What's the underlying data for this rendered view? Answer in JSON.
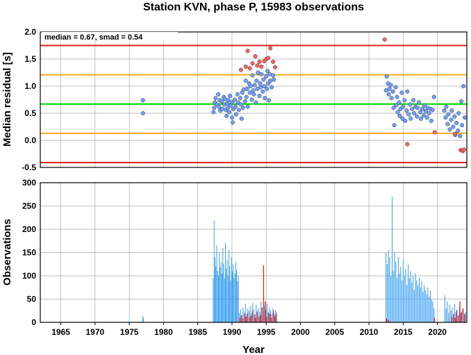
{
  "title": "Station KVN, phase P, 15983 observations",
  "colors": {
    "grid": "#a9a9a9",
    "red": "#e0201b",
    "orange": "#f5a623",
    "green": "#22dd22",
    "blue_point": "#6ea0ff",
    "red_point": "#ff6060",
    "blue_bar": "#2a97f2",
    "red_bar": "#d62020"
  },
  "chart_data": [
    {
      "type": "scatter",
      "ylabel": "Median residual [s]",
      "annotation": "median = 0.67, smad = 0.54",
      "xlim": [
        1962,
        2024.3
      ],
      "ylim": [
        -0.5,
        2.0
      ],
      "yticks": [
        "2.0",
        "1.5",
        "1.0",
        "0.5",
        "0.0",
        "-0.5"
      ],
      "ytick_values": [
        2.0,
        1.5,
        1.0,
        0.5,
        0.0,
        -0.5
      ],
      "reference_lines": [
        {
          "y": 1.75,
          "color": "red"
        },
        {
          "y": 1.21,
          "color": "orange"
        },
        {
          "y": 0.67,
          "color": "green"
        },
        {
          "y": 0.13,
          "color": "orange"
        },
        {
          "y": -0.41,
          "color": "red"
        }
      ],
      "series": [
        {
          "color": "blue_point",
          "points": [
            [
              1977.0,
              0.74
            ],
            [
              1977.0,
              0.5
            ],
            [
              1987.3,
              0.52
            ],
            [
              1987.4,
              0.6
            ],
            [
              1987.5,
              0.7
            ],
            [
              1987.6,
              0.78
            ],
            [
              1987.8,
              0.66
            ],
            [
              1988.0,
              0.85
            ],
            [
              1988.1,
              0.62
            ],
            [
              1988.2,
              0.74
            ],
            [
              1988.3,
              0.55
            ],
            [
              1988.5,
              0.72
            ],
            [
              1988.6,
              0.58
            ],
            [
              1988.8,
              0.8
            ],
            [
              1988.9,
              0.66
            ],
            [
              1989.0,
              0.76
            ],
            [
              1989.1,
              0.56
            ],
            [
              1989.2,
              0.45
            ],
            [
              1989.3,
              0.68
            ],
            [
              1989.4,
              0.6
            ],
            [
              1989.5,
              0.74
            ],
            [
              1989.6,
              0.52
            ],
            [
              1989.7,
              0.82
            ],
            [
              1989.8,
              0.64
            ],
            [
              1990.0,
              0.7
            ],
            [
              1990.0,
              0.42
            ],
            [
              1990.1,
              0.33
            ],
            [
              1990.2,
              0.58
            ],
            [
              1990.4,
              0.75
            ],
            [
              1990.5,
              0.62
            ],
            [
              1990.6,
              0.48
            ],
            [
              1990.8,
              0.85
            ],
            [
              1990.9,
              0.7
            ],
            [
              1991.0,
              0.56
            ],
            [
              1991.2,
              0.78
            ],
            [
              1991.3,
              0.66
            ],
            [
              1991.4,
              0.4
            ],
            [
              1991.5,
              0.88
            ],
            [
              1991.6,
              0.6
            ],
            [
              1991.7,
              0.94
            ],
            [
              1991.9,
              0.72
            ],
            [
              1992.0,
              1.1
            ],
            [
              1992.1,
              0.8
            ],
            [
              1992.2,
              0.95
            ],
            [
              1992.3,
              0.62
            ],
            [
              1992.5,
              1.05
            ],
            [
              1992.6,
              0.88
            ],
            [
              1992.7,
              1.0
            ],
            [
              1992.9,
              0.75
            ],
            [
              1993.0,
              1.2
            ],
            [
              1993.1,
              0.92
            ],
            [
              1993.2,
              0.85
            ],
            [
              1993.3,
              1.02
            ],
            [
              1993.5,
              0.7
            ],
            [
              1993.6,
              1.1
            ],
            [
              1993.7,
              0.95
            ],
            [
              1993.8,
              1.25
            ],
            [
              1994.0,
              0.82
            ],
            [
              1994.1,
              1.05
            ],
            [
              1994.2,
              0.98
            ],
            [
              1994.3,
              1.22
            ],
            [
              1994.5,
              0.9
            ],
            [
              1994.6,
              1.12
            ],
            [
              1994.7,
              1.0
            ],
            [
              1994.8,
              0.78
            ],
            [
              1995.0,
              1.18
            ],
            [
              1995.1,
              0.95
            ],
            [
              1995.2,
              1.28
            ],
            [
              1995.3,
              1.05
            ],
            [
              1995.4,
              0.74
            ],
            [
              1995.5,
              1.22
            ],
            [
              1995.6,
              1.1
            ],
            [
              1995.8,
              0.98
            ],
            [
              1996.0,
              1.2
            ],
            [
              1996.1,
              1.12
            ],
            [
              2012.5,
              0.92
            ],
            [
              2012.6,
              1.18
            ],
            [
              2012.8,
              1.05
            ],
            [
              2012.9,
              0.85
            ],
            [
              2013.0,
              0.95
            ],
            [
              2013.2,
              1.02
            ],
            [
              2013.3,
              0.78
            ],
            [
              2013.5,
              0.9
            ],
            [
              2013.6,
              0.6
            ],
            [
              2013.7,
              0.28
            ],
            [
              2013.9,
              0.98
            ],
            [
              2014.0,
              0.65
            ],
            [
              2014.1,
              0.8
            ],
            [
              2014.2,
              0.52
            ],
            [
              2014.4,
              0.7
            ],
            [
              2014.5,
              0.45
            ],
            [
              2014.6,
              0.58
            ],
            [
              2014.8,
              0.88
            ],
            [
              2014.9,
              0.4
            ],
            [
              2015.0,
              0.62
            ],
            [
              2015.2,
              0.74
            ],
            [
              2015.3,
              0.36
            ],
            [
              2015.5,
              0.55
            ],
            [
              2015.6,
              0.9
            ],
            [
              2015.8,
              0.48
            ],
            [
              2016.0,
              0.66
            ],
            [
              2016.1,
              0.4
            ],
            [
              2016.3,
              0.58
            ],
            [
              2016.5,
              0.74
            ],
            [
              2016.6,
              0.5
            ],
            [
              2016.8,
              0.62
            ],
            [
              2017.0,
              0.44
            ],
            [
              2017.1,
              0.6
            ],
            [
              2017.3,
              0.7
            ],
            [
              2017.5,
              0.52
            ],
            [
              2017.6,
              0.4
            ],
            [
              2017.8,
              0.58
            ],
            [
              2018.0,
              0.46
            ],
            [
              2018.1,
              0.64
            ],
            [
              2018.3,
              0.54
            ],
            [
              2018.5,
              0.42
            ],
            [
              2018.6,
              0.6
            ],
            [
              2018.8,
              0.5
            ],
            [
              2019.0,
              0.58
            ],
            [
              2019.1,
              0.36
            ],
            [
              2019.3,
              0.56
            ],
            [
              2019.5,
              0.8
            ],
            [
              2021.0,
              0.55
            ],
            [
              2021.2,
              0.42
            ],
            [
              2021.3,
              0.62
            ],
            [
              2021.5,
              0.3
            ],
            [
              2021.6,
              0.48
            ],
            [
              2021.8,
              0.2
            ],
            [
              2022.0,
              0.38
            ],
            [
              2022.1,
              0.55
            ],
            [
              2022.3,
              0.25
            ],
            [
              2022.5,
              0.44
            ],
            [
              2022.6,
              0.1
            ],
            [
              2022.8,
              0.32
            ],
            [
              2023.0,
              0.18
            ],
            [
              2023.1,
              0.5
            ],
            [
              2023.3,
              0.08
            ],
            [
              2023.5,
              0.72
            ],
            [
              2023.6,
              0.28
            ],
            [
              2023.8,
              1.0
            ],
            [
              2024.0,
              0.42
            ]
          ]
        },
        {
          "color": "red_point",
          "points": [
            [
              1991.3,
              1.3
            ],
            [
              1992.0,
              1.36
            ],
            [
              1992.3,
              1.65
            ],
            [
              1992.6,
              1.33
            ],
            [
              1993.0,
              1.42
            ],
            [
              1993.4,
              1.55
            ],
            [
              1993.7,
              1.38
            ],
            [
              1994.0,
              1.45
            ],
            [
              1994.3,
              1.36
            ],
            [
              1994.7,
              1.46
            ],
            [
              1995.0,
              1.5
            ],
            [
              1995.3,
              1.52
            ],
            [
              1995.6,
              1.7
            ],
            [
              1996.0,
              1.45
            ],
            [
              1996.3,
              1.35
            ],
            [
              2012.3,
              1.86
            ],
            [
              2015.6,
              -0.07
            ],
            [
              2019.6,
              0.15
            ],
            [
              2022.6,
              0.12
            ],
            [
              2023.4,
              -0.18
            ],
            [
              2023.7,
              -0.2
            ],
            [
              2023.9,
              -0.17
            ]
          ]
        }
      ]
    },
    {
      "type": "bar",
      "ylabel": "Observations",
      "xlabel": "Year",
      "xlim": [
        1962,
        2024.3
      ],
      "ylim": [
        0,
        300
      ],
      "yticks": [
        "300",
        "250",
        "200",
        "150",
        "100",
        "50",
        "0"
      ],
      "ytick_values": [
        300,
        250,
        200,
        150,
        100,
        50,
        0
      ],
      "xticks": [
        "1965",
        "1970",
        "1975",
        "1980",
        "1985",
        "1990",
        "1995",
        "2000",
        "2005",
        "2010",
        "2015",
        "2020"
      ],
      "xtick_values": [
        1965,
        1970,
        1975,
        1980,
        1985,
        1990,
        1995,
        2000,
        2005,
        2010,
        2015,
        2020
      ],
      "series": [
        {
          "color": "blue_bar",
          "segments": [
            {
              "start": 1976.9,
              "end": 1977.1,
              "values": [
                14,
                10
              ]
            },
            {
              "start": 1987.2,
              "end": 1991.0,
              "values": [
                95,
                218,
                140,
                120,
                165,
                110,
                100,
                150,
                118,
                130,
                105,
                160,
                125,
                95,
                170,
                115,
                135,
                100,
                155,
                120,
                90,
                140,
                110,
                125,
                95,
                105,
                130,
                112,
                88,
                100
              ]
            },
            {
              "start": 1991.0,
              "end": 1996.6,
              "values": [
                20,
                28,
                15,
                32,
                22,
                40,
                18,
                30,
                25,
                35,
                20,
                42,
                28,
                18,
                38,
                25,
                30,
                22,
                45,
                30,
                20,
                35,
                28,
                40,
                22,
                32,
                25,
                18,
                30,
                20,
                26,
                22
              ]
            },
            {
              "start": 2012.4,
              "end": 2019.6,
              "values": [
                150,
                125,
                155,
                140,
                100,
                270,
                110,
                150,
                130,
                95,
                140,
                105,
                120,
                90,
                135,
                100,
                115,
                80,
                125,
                95,
                110,
                85,
                100,
                70,
                105,
                90,
                80,
                95,
                75,
                88,
                65,
                80,
                70,
                60,
                75,
                55,
                68,
                50,
                45,
                30
              ]
            },
            {
              "start": 2021.0,
              "end": 2024.2,
              "values": [
                58,
                30,
                45,
                20,
                38,
                25,
                32,
                18,
                40,
                22,
                28,
                15,
                35,
                20,
                25,
                30,
                18,
                22
              ]
            }
          ]
        },
        {
          "color": "red_bar",
          "segments": [
            {
              "start": 1991.0,
              "end": 1996.6,
              "values": [
                10,
                15,
                8,
                18,
                12,
                20,
                10,
                14,
                25,
                16,
                10,
                22,
                12,
                15,
                32,
                123,
                45,
                12,
                20,
                18,
                10,
                25,
                14,
                18
              ]
            },
            {
              "start": 2012.4,
              "end": 2013.0,
              "values": [
                8,
                5
              ]
            },
            {
              "start": 2019.4,
              "end": 2019.7,
              "values": [
                10
              ]
            },
            {
              "start": 2022.0,
              "end": 2024.1,
              "values": [
                12,
                18,
                10,
                25,
                15,
                45,
                22,
                30,
                18
              ]
            }
          ]
        }
      ]
    }
  ]
}
